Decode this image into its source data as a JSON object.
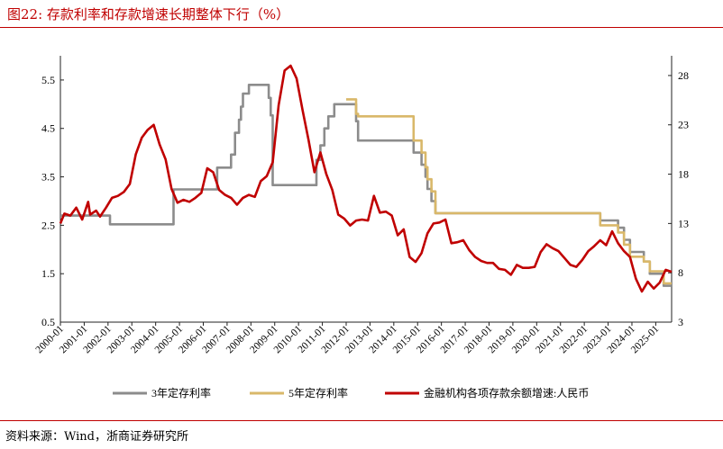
{
  "figure": {
    "title": "图22:   存款利率和存款增速长期整体下行（%）",
    "source": "资料来源：Wind，浙商证券研究所"
  },
  "colors": {
    "accent": "#c00000",
    "rate3y": "#8c8c8c",
    "rate5y": "#d9b86a",
    "growth": "#c00000"
  },
  "chart_data": {
    "type": "line",
    "x_ticks": [
      "2000-01",
      "2001-01",
      "2002-01",
      "2003-01",
      "2004-01",
      "2005-01",
      "2006-01",
      "2007-01",
      "2008-01",
      "2009-01",
      "2010-01",
      "2011-01",
      "2012-01",
      "2013-01",
      "2014-01",
      "2015-01",
      "2016-01",
      "2017-01",
      "2018-01",
      "2019-01",
      "2020-01",
      "2021-01",
      "2022-01",
      "2023-01",
      "2024-01",
      "2025-01"
    ],
    "xlim": [
      "2000-01",
      "2025-09"
    ],
    "y_left": {
      "min": 0.5,
      "max": 6.0,
      "ticks": [
        "0.5",
        "1.5",
        "2.5",
        "3.5",
        "4.5",
        "5.5"
      ]
    },
    "y_right": {
      "min": 3,
      "max": 30,
      "ticks": [
        "3",
        "8",
        "13",
        "18",
        "23",
        "28"
      ]
    },
    "grid": false,
    "legend_position": "bottom",
    "series": [
      {
        "name": "3年定存利率",
        "axis": "left",
        "color": "#8c8c8c",
        "step": true,
        "points": [
          [
            "2000-01",
            2.7
          ],
          [
            "2002-02",
            2.52
          ],
          [
            "2004-10",
            3.24
          ],
          [
            "2006-08",
            3.69
          ],
          [
            "2007-03",
            3.96
          ],
          [
            "2007-05",
            4.41
          ],
          [
            "2007-07",
            4.68
          ],
          [
            "2007-08",
            4.95
          ],
          [
            "2007-09",
            5.22
          ],
          [
            "2007-12",
            5.4
          ],
          [
            "2008-10",
            5.13
          ],
          [
            "2008-11",
            4.77
          ],
          [
            "2008-12",
            3.33
          ],
          [
            "2010-10",
            3.85
          ],
          [
            "2010-12",
            4.15
          ],
          [
            "2011-02",
            4.5
          ],
          [
            "2011-04",
            4.75
          ],
          [
            "2011-07",
            5.0
          ],
          [
            "2012-06",
            4.65
          ],
          [
            "2012-07",
            4.25
          ],
          [
            "2014-11",
            4.0
          ],
          [
            "2015-03",
            3.75
          ],
          [
            "2015-05",
            3.5
          ],
          [
            "2015-06",
            3.25
          ],
          [
            "2015-08",
            3.0
          ],
          [
            "2015-10",
            2.75
          ],
          [
            "2022-09",
            2.6
          ],
          [
            "2023-06",
            2.45
          ],
          [
            "2023-09",
            2.2
          ],
          [
            "2023-12",
            1.95
          ],
          [
            "2024-07",
            1.75
          ],
          [
            "2024-10",
            1.5
          ],
          [
            "2025-05",
            1.25
          ],
          [
            "2025-09",
            1.25
          ]
        ]
      },
      {
        "name": "5年定存利率",
        "axis": "left",
        "color": "#d9b86a",
        "step": true,
        "points": [
          [
            "2012-01",
            5.1
          ],
          [
            "2012-06",
            4.8
          ],
          [
            "2012-07",
            4.75
          ],
          [
            "2014-11",
            4.25
          ],
          [
            "2015-03",
            4.0
          ],
          [
            "2015-05",
            3.7
          ],
          [
            "2015-06",
            3.45
          ],
          [
            "2015-08",
            3.2
          ],
          [
            "2015-10",
            2.75
          ],
          [
            "2022-09",
            2.5
          ],
          [
            "2023-06",
            2.35
          ],
          [
            "2023-09",
            2.1
          ],
          [
            "2023-12",
            1.85
          ],
          [
            "2024-07",
            1.75
          ],
          [
            "2024-10",
            1.55
          ],
          [
            "2025-05",
            1.3
          ],
          [
            "2025-09",
            1.3
          ]
        ]
      },
      {
        "name": "金融机构各项存款余额增速:人民币",
        "axis": "right",
        "color": "#c00000",
        "step": false,
        "points": [
          [
            "2000-01",
            13.0
          ],
          [
            "2000-03",
            14.0
          ],
          [
            "2000-06",
            13.8
          ],
          [
            "2000-09",
            14.6
          ],
          [
            "2000-12",
            13.4
          ],
          [
            "2001-03",
            15.2
          ],
          [
            "2001-04",
            13.9
          ],
          [
            "2001-07",
            14.3
          ],
          [
            "2001-09",
            13.7
          ],
          [
            "2001-12",
            14.6
          ],
          [
            "2002-03",
            15.6
          ],
          [
            "2002-06",
            15.8
          ],
          [
            "2002-09",
            16.2
          ],
          [
            "2002-12",
            17.0
          ],
          [
            "2003-03",
            20.0
          ],
          [
            "2003-06",
            21.7
          ],
          [
            "2003-09",
            22.5
          ],
          [
            "2003-12",
            23.0
          ],
          [
            "2004-03",
            21.0
          ],
          [
            "2004-06",
            19.5
          ],
          [
            "2004-09",
            16.5
          ],
          [
            "2004-12",
            15.1
          ],
          [
            "2005-03",
            15.4
          ],
          [
            "2005-06",
            15.2
          ],
          [
            "2005-09",
            15.6
          ],
          [
            "2005-12",
            16.1
          ],
          [
            "2006-03",
            18.6
          ],
          [
            "2006-06",
            18.2
          ],
          [
            "2006-09",
            16.4
          ],
          [
            "2006-12",
            15.9
          ],
          [
            "2007-03",
            15.6
          ],
          [
            "2007-06",
            14.9
          ],
          [
            "2007-09",
            15.6
          ],
          [
            "2007-12",
            15.9
          ],
          [
            "2008-03",
            15.7
          ],
          [
            "2008-06",
            17.3
          ],
          [
            "2008-09",
            17.8
          ],
          [
            "2008-12",
            19.2
          ],
          [
            "2009-03",
            25.0
          ],
          [
            "2009-06",
            28.5
          ],
          [
            "2009-09",
            29.0
          ],
          [
            "2009-12",
            27.7
          ],
          [
            "2010-03",
            24.5
          ],
          [
            "2010-06",
            21.5
          ],
          [
            "2010-09",
            18.2
          ],
          [
            "2010-12",
            20.2
          ],
          [
            "2011-03",
            18.0
          ],
          [
            "2011-06",
            16.4
          ],
          [
            "2011-09",
            13.9
          ],
          [
            "2011-12",
            13.5
          ],
          [
            "2012-03",
            12.8
          ],
          [
            "2012-06",
            13.3
          ],
          [
            "2012-09",
            13.4
          ],
          [
            "2012-12",
            13.3
          ],
          [
            "2013-03",
            15.8
          ],
          [
            "2013-06",
            14.1
          ],
          [
            "2013-09",
            14.2
          ],
          [
            "2013-12",
            13.8
          ],
          [
            "2014-03",
            11.8
          ],
          [
            "2014-06",
            12.4
          ],
          [
            "2014-09",
            9.6
          ],
          [
            "2014-12",
            9.1
          ],
          [
            "2015-03",
            10.0
          ],
          [
            "2015-06",
            12.0
          ],
          [
            "2015-09",
            13.0
          ],
          [
            "2015-12",
            13.1
          ],
          [
            "2016-03",
            13.4
          ],
          [
            "2016-06",
            11.0
          ],
          [
            "2016-09",
            11.1
          ],
          [
            "2016-12",
            11.3
          ],
          [
            "2017-03",
            10.3
          ],
          [
            "2017-06",
            9.6
          ],
          [
            "2017-09",
            9.2
          ],
          [
            "2017-12",
            9.0
          ],
          [
            "2018-03",
            9.0
          ],
          [
            "2018-06",
            8.4
          ],
          [
            "2018-09",
            8.3
          ],
          [
            "2018-12",
            7.8
          ],
          [
            "2019-03",
            8.8
          ],
          [
            "2019-06",
            8.5
          ],
          [
            "2019-09",
            8.5
          ],
          [
            "2019-12",
            8.6
          ],
          [
            "2020-03",
            10.1
          ],
          [
            "2020-06",
            10.9
          ],
          [
            "2020-09",
            10.5
          ],
          [
            "2020-12",
            10.2
          ],
          [
            "2021-03",
            9.5
          ],
          [
            "2021-06",
            8.8
          ],
          [
            "2021-09",
            8.6
          ],
          [
            "2021-12",
            9.3
          ],
          [
            "2022-03",
            10.2
          ],
          [
            "2022-06",
            10.7
          ],
          [
            "2022-09",
            11.3
          ],
          [
            "2022-12",
            10.8
          ],
          [
            "2023-03",
            12.2
          ],
          [
            "2023-06",
            11.0
          ],
          [
            "2023-09",
            10.2
          ],
          [
            "2023-12",
            9.6
          ],
          [
            "2024-03",
            7.4
          ],
          [
            "2024-06",
            6.1
          ],
          [
            "2024-09",
            7.1
          ],
          [
            "2024-12",
            6.4
          ],
          [
            "2025-03",
            7.0
          ],
          [
            "2025-06",
            8.3
          ],
          [
            "2025-09",
            8.1
          ]
        ]
      }
    ]
  }
}
